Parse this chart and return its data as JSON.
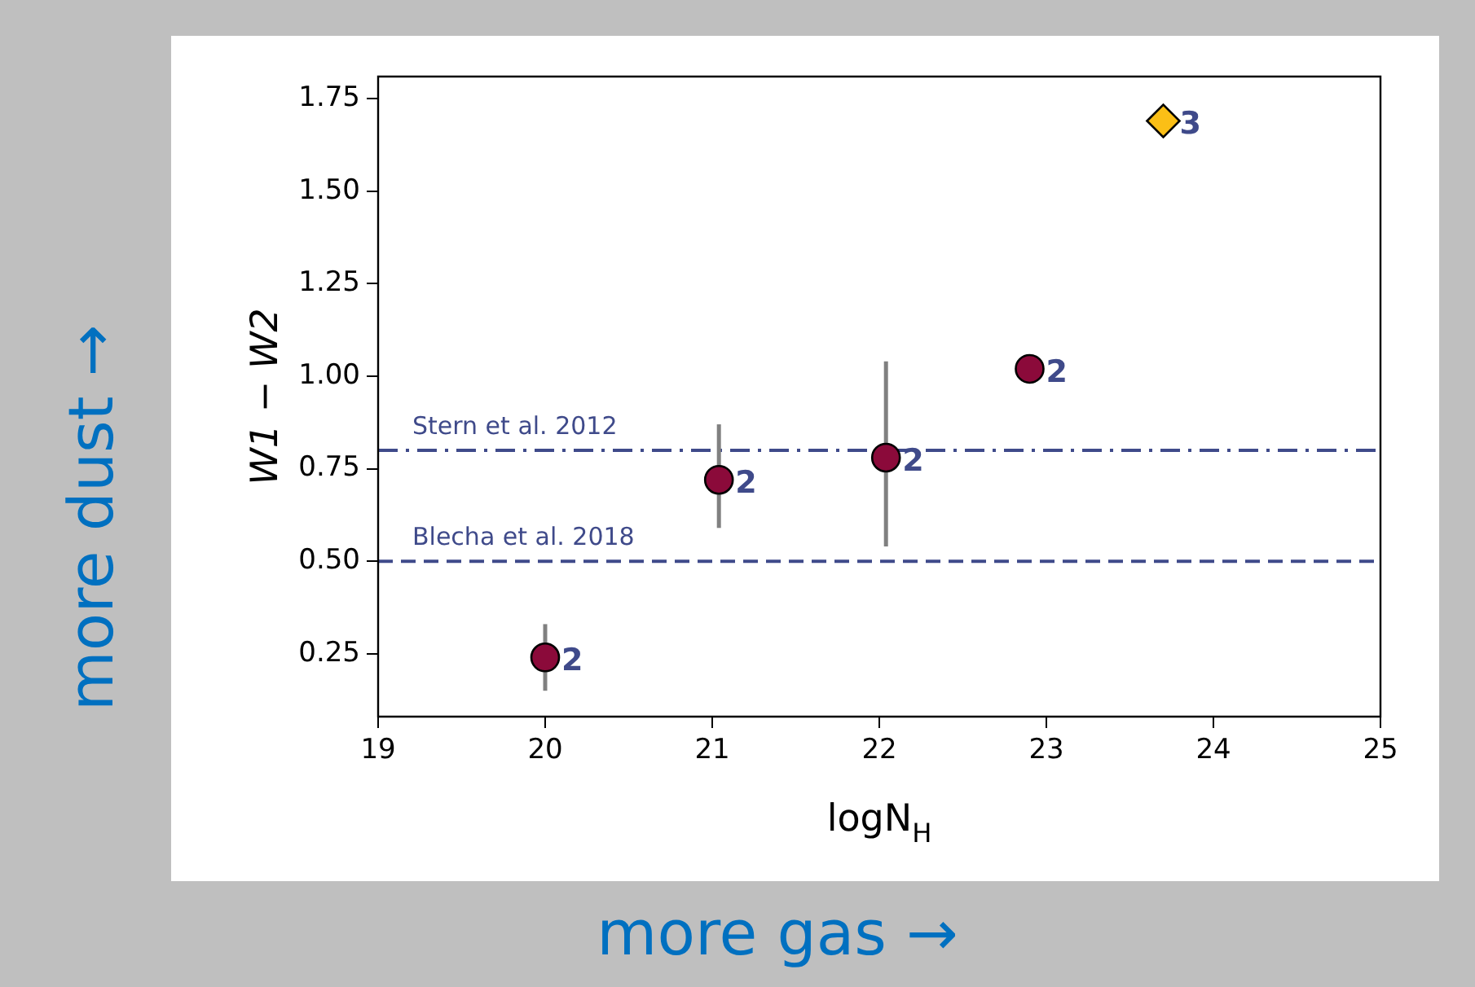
{
  "chart_data": {
    "type": "scatter",
    "xlabel": "logN$_{H}$",
    "ylabel": "W1 − W2",
    "xlim": [
      19,
      25
    ],
    "xticks": [
      19,
      20,
      21,
      22,
      23,
      24,
      25
    ],
    "ylim": [
      0.08,
      1.81
    ],
    "yticks": [
      {
        "value": 0.25,
        "label": "0.25"
      },
      {
        "value": 0.5,
        "label": "0.50"
      },
      {
        "value": 0.75,
        "label": "0.75"
      },
      {
        "value": 1.0,
        "label": "1.00"
      },
      {
        "value": 1.25,
        "label": "1.25"
      },
      {
        "value": 1.5,
        "label": "1.50"
      },
      {
        "value": 1.75,
        "label": "1.75"
      }
    ],
    "grid": false,
    "legend": false,
    "series": [
      {
        "color": "#8b0a3a",
        "marker": "circle",
        "x": [
          20.0,
          21.04,
          22.04,
          22.9
        ],
        "values": [
          0.24,
          0.72,
          0.78,
          1.02
        ],
        "errors": [
          [
            0.15,
            0.33
          ],
          [
            0.59,
            0.87
          ],
          [
            0.54,
            1.04
          ],
          null
        ]
      },
      {
        "color": "#fbbf16",
        "marker": "diamond",
        "x": [
          23.7
        ],
        "values": [
          1.69
        ]
      }
    ],
    "ref_lines": [
      {
        "axis": "y",
        "value": 0.8,
        "label": "Stern et al. 2012",
        "color": "#3f4a8a",
        "line_style": "dashdot"
      },
      {
        "axis": "y",
        "value": 0.5,
        "label": "Blecha et al. 2018",
        "color": "#3f4a8a",
        "line_style": "dashed"
      }
    ],
    "annotations": [
      {
        "text": "2",
        "x": 20.0,
        "y": 0.24
      },
      {
        "text": "2",
        "x": 21.04,
        "y": 0.72
      },
      {
        "text": "2",
        "x": 22.04,
        "y": 0.78
      },
      {
        "text": "2",
        "x": 22.9,
        "y": 1.02
      },
      {
        "text": "3",
        "x": 23.7,
        "y": 1.69
      },
      "more dust →",
      "more gas →"
    ]
  }
}
